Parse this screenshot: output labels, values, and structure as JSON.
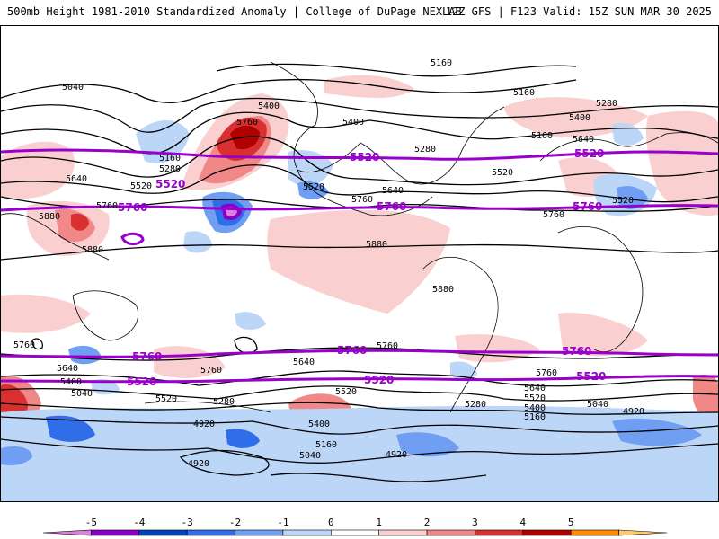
{
  "header": {
    "title_left": "500mb Height 1981-2010 Standardized Anomaly | College of DuPage NEXLAB",
    "title_right": "12Z GFS | F123 Valid: 15Z SUN MAR 30 2025"
  },
  "colors": {
    "contour": "#000000",
    "thick_contour": "#9900cc",
    "coast": "#000000"
  },
  "map": {
    "contour_labels": [
      "5040",
      "5160",
      "5280",
      "5400",
      "5520",
      "5640",
      "5760",
      "5880",
      "4920"
    ],
    "thick_labels": [
      "5520",
      "5760"
    ]
  },
  "colorbar": {
    "ticks": [
      "-5",
      "-4",
      "-3",
      "-2",
      "-1",
      "0",
      "1",
      "2",
      "3",
      "4",
      "5"
    ],
    "colors": [
      "#e07ee0",
      "#8b00c8",
      "#0044b8",
      "#2f6ee8",
      "#6f9ef2",
      "#bcd6f8",
      "#ffffff",
      "#f9cfd0",
      "#f08888",
      "#d83030",
      "#b00000",
      "#ff8c00",
      "#ffcc66"
    ]
  }
}
